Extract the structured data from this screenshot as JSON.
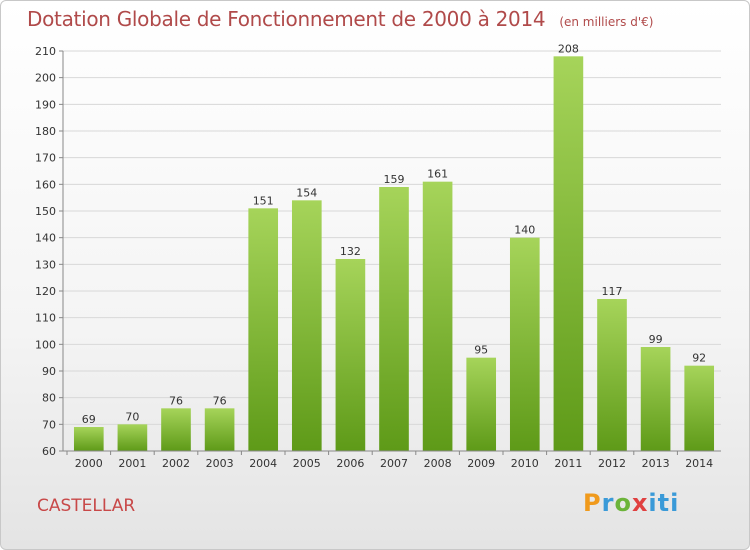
{
  "title": "Dotation Globale de Fonctionnement de 2000 à 2014",
  "subtitle": "(en milliers d'€)",
  "commune": "CASTELLAR",
  "logo": {
    "text": "Proxiti",
    "colors": [
      "#f09a1c",
      "#3a9ad8",
      "#6cb43a",
      "#e04040",
      "#3a9ad8"
    ]
  },
  "colors": {
    "bar_light": "#a6d45a",
    "bar_dark": "#5e9a18",
    "title": "#b04a4a",
    "grid": "#d8d8d8"
  },
  "chart_data": {
    "type": "bar",
    "categories": [
      "2000",
      "2001",
      "2002",
      "2003",
      "2004",
      "2005",
      "2006",
      "2007",
      "2008",
      "2009",
      "2010",
      "2011",
      "2012",
      "2013",
      "2014"
    ],
    "values": [
      69,
      70,
      76,
      76,
      151,
      154,
      132,
      159,
      161,
      95,
      140,
      208,
      117,
      99,
      92
    ],
    "ylim": [
      60,
      210
    ],
    "yticks": [
      60,
      70,
      80,
      90,
      100,
      110,
      120,
      130,
      140,
      150,
      160,
      170,
      180,
      190,
      200,
      210
    ],
    "grid": true
  }
}
